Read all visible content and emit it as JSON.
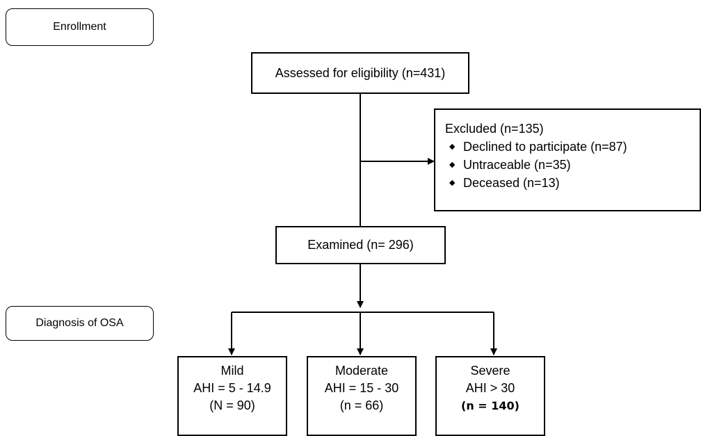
{
  "stages": {
    "enrollment": "Enrollment",
    "diagnosis": "Diagnosis of OSA"
  },
  "assessed": "Assessed for eligibility (n=431)",
  "excluded": {
    "title": "Excluded (n=135)",
    "items": [
      "Declined to participate (n=87)",
      "Untraceable (n=35)",
      "Deceased (n=13)"
    ],
    "bullet_icon": "diamond-bullet"
  },
  "examined": "Examined (n= 296)",
  "groups": [
    {
      "name": "Mild",
      "ahi": "AHI = 5 - 14.9",
      "n": "(N = 90)"
    },
    {
      "name": "Moderate",
      "ahi": "AHI = 15 - 30",
      "n": "(n = 66)"
    },
    {
      "name": "Severe",
      "ahi": "AHI > 30",
      "n": "(n = 140)"
    }
  ]
}
